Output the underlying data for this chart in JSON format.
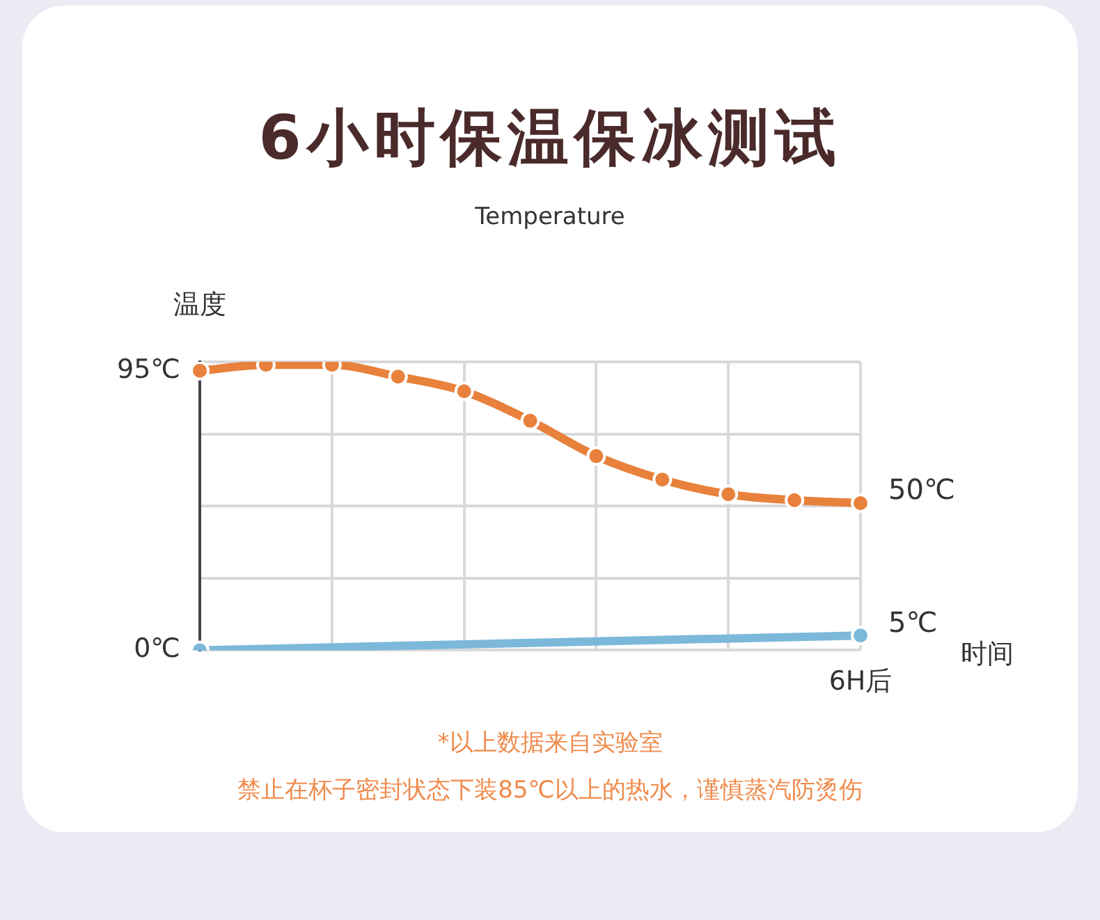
{
  "chart_data": {
    "type": "line",
    "title": "6小时保温保冰测试",
    "subtitle": "Temperature",
    "ylabel": "温度",
    "xlabel": "时间",
    "categories": [
      null,
      null,
      null,
      null,
      null,
      null,
      null,
      null,
      null,
      null,
      "6H后"
    ],
    "ylim": [
      0,
      98
    ],
    "yticks": [
      {
        "value": 0,
        "label": "0℃"
      },
      {
        "value": 24.5,
        "label": null
      },
      {
        "value": 49,
        "label": null
      },
      {
        "value": 73.5,
        "label": null
      },
      {
        "value": 95,
        "label": "95℃"
      },
      {
        "value": 98,
        "label": null
      }
    ],
    "grid": true,
    "legend": false,
    "marker": "circle",
    "line_style": "solid",
    "series": [
      {
        "color": "#e8813c",
        "values": [
          95,
          97,
          97,
          93,
          88,
          78,
          66,
          58,
          53,
          51,
          50
        ],
        "value_labels": [
          null,
          null,
          null,
          null,
          null,
          null,
          null,
          null,
          null,
          null,
          "50℃"
        ]
      },
      {
        "color": "#7cb8da",
        "values": [
          0,
          null,
          null,
          null,
          null,
          null,
          null,
          null,
          null,
          null,
          5
        ],
        "value_labels": [
          null,
          null,
          null,
          null,
          null,
          null,
          null,
          null,
          null,
          null,
          "5℃"
        ]
      }
    ],
    "annotations": [
      "*以上数据来自实验室",
      "禁止在杯子密封状态下装85℃以上的热水，谨慎蒸汽防烫伤"
    ]
  }
}
